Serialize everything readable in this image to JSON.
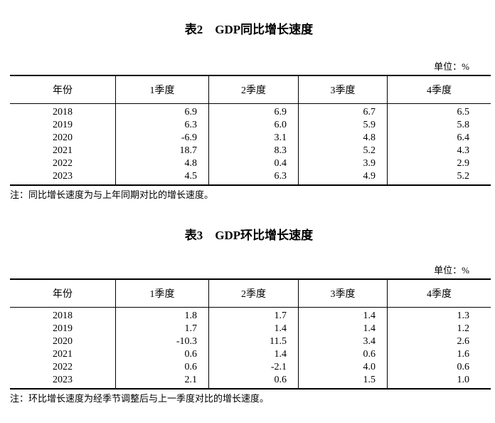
{
  "page": {
    "background": "#ffffff",
    "text_color": "#000000",
    "rule_color": "#000000"
  },
  "table2": {
    "title": "表2　GDP同比增长速度",
    "unit_label": "单位：%",
    "columns": [
      "年份",
      "1季度",
      "2季度",
      "3季度",
      "4季度"
    ],
    "rows": [
      [
        "2018",
        "6.9",
        "6.9",
        "6.7",
        "6.5"
      ],
      [
        "2019",
        "6.3",
        "6.0",
        "5.9",
        "5.8"
      ],
      [
        "2020",
        "-6.9",
        "3.1",
        "4.8",
        "6.4"
      ],
      [
        "2021",
        "18.7",
        "8.3",
        "5.2",
        "4.3"
      ],
      [
        "2022",
        "4.8",
        "0.4",
        "3.9",
        "2.9"
      ],
      [
        "2023",
        "4.5",
        "6.3",
        "4.9",
        "5.2"
      ]
    ],
    "note": "注：同比增长速度为与上年同期对比的增长速度。"
  },
  "table3": {
    "title": "表3　GDP环比增长速度",
    "unit_label": "单位：%",
    "columns": [
      "年份",
      "1季度",
      "2季度",
      "3季度",
      "4季度"
    ],
    "rows": [
      [
        "2018",
        "1.8",
        "1.7",
        "1.4",
        "1.3"
      ],
      [
        "2019",
        "1.7",
        "1.4",
        "1.4",
        "1.2"
      ],
      [
        "2020",
        "-10.3",
        "11.5",
        "3.4",
        "2.6"
      ],
      [
        "2021",
        "0.6",
        "1.4",
        "0.6",
        "1.6"
      ],
      [
        "2022",
        "0.6",
        "-2.1",
        "4.0",
        "0.6"
      ],
      [
        "2023",
        "2.1",
        "0.6",
        "1.5",
        "1.0"
      ]
    ],
    "note": "注：环比增长速度为经季节调整后与上一季度对比的增长速度。"
  }
}
